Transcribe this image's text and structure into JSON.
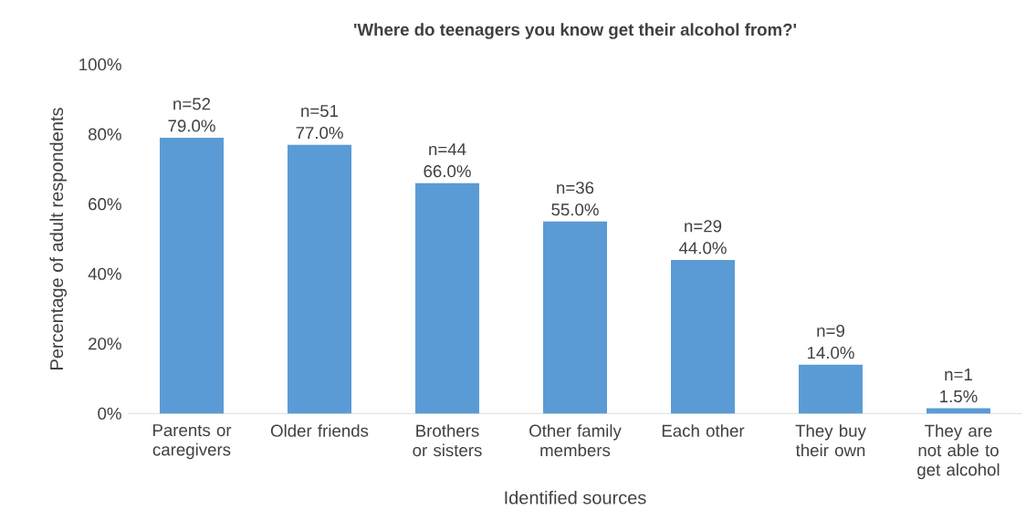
{
  "chart_data": {
    "type": "bar",
    "title": "'Where do teenagers you know get their alcohol from?'",
    "xlabel": "Identified sources",
    "ylabel": "Percentage of adult respondents",
    "categories": [
      "Parents or caregivers",
      "Older friends",
      "Brothers or sisters",
      "Other family members",
      "Each other",
      "They buy their own",
      "They are not able to get alcohol"
    ],
    "values": [
      79,
      77,
      66,
      55,
      44,
      14,
      1.5
    ],
    "value_labels": [
      "n=52 79.0%",
      "n=51 77.0%",
      "n=44 66.0%",
      "n=36 55.0%",
      "n=29 44.0%",
      "n=9 14.0%",
      "n=1 1.5%"
    ],
    "color": "#5b9bd5",
    "ylim": [
      0,
      100
    ],
    "yticks": [
      {
        "value": 0,
        "label": "0%"
      },
      {
        "value": 20,
        "label": "20%"
      },
      {
        "value": 40,
        "label": "40%"
      },
      {
        "value": 60,
        "label": "60%"
      },
      {
        "value": 80,
        "label": "80%"
      },
      {
        "value": 100,
        "label": "100%"
      }
    ]
  }
}
